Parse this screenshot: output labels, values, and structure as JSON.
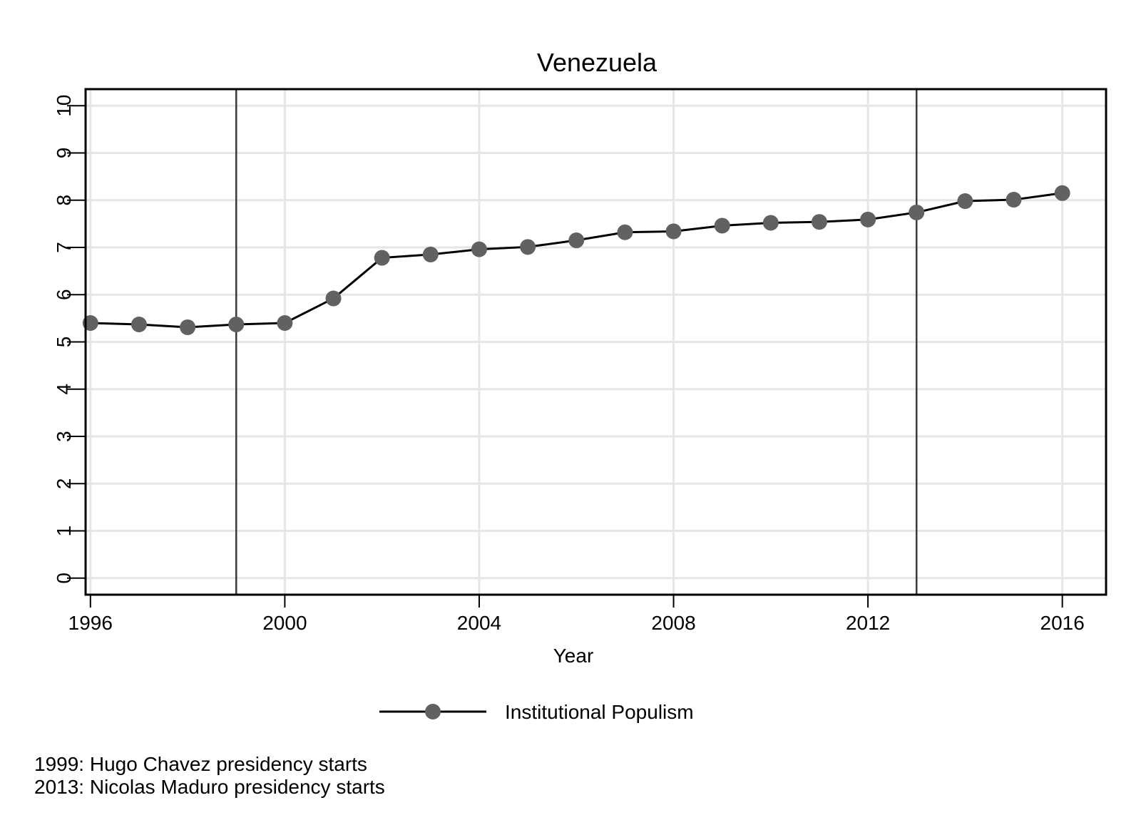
{
  "chart_data": {
    "type": "line",
    "title": "Venezuela",
    "xlabel": "Year",
    "ylabel": "",
    "xlim": [
      1995.9,
      2016.9
    ],
    "ylim": [
      -0.35,
      10.35
    ],
    "x_ticks": [
      1996,
      2000,
      2004,
      2008,
      2012,
      2016
    ],
    "y_ticks": [
      0,
      1,
      2,
      3,
      4,
      5,
      6,
      7,
      8,
      9,
      10
    ],
    "grid": true,
    "legend_position": "bottom",
    "series": [
      {
        "name": "Institutional Populism",
        "color": "#000000",
        "marker_color": "#616161",
        "x": [
          1996,
          1997,
          1998,
          1999,
          2000,
          2001,
          2002,
          2003,
          2004,
          2005,
          2006,
          2007,
          2008,
          2009,
          2010,
          2011,
          2012,
          2013,
          2014,
          2015,
          2016
        ],
        "values": [
          5.4,
          5.37,
          5.31,
          5.37,
          5.4,
          5.92,
          6.78,
          6.85,
          6.96,
          7.01,
          7.15,
          7.32,
          7.34,
          7.46,
          7.52,
          7.54,
          7.59,
          7.74,
          7.98,
          8.01,
          8.15
        ]
      }
    ],
    "vertical_lines": [
      {
        "x": 1999,
        "color": "#3a3a3a"
      },
      {
        "x": 2013,
        "color": "#3a3a3a"
      }
    ],
    "notes": [
      "1999: Hugo Chavez presidency starts",
      "2013: Nicolas Maduro presidency starts"
    ]
  }
}
